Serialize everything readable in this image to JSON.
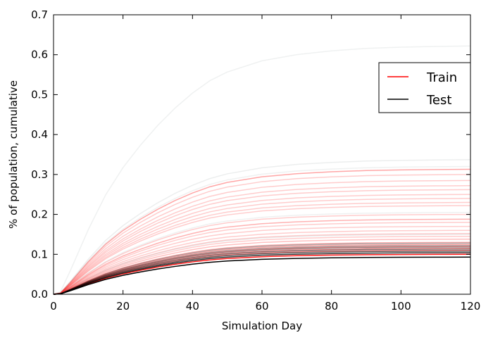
{
  "chart_data": {
    "type": "line",
    "title": "",
    "xlabel": "Simulation Day",
    "ylabel": "% of population, cumulative",
    "xlim": [
      0,
      120
    ],
    "ylim": [
      0,
      0.7
    ],
    "xticks": [
      0,
      20,
      40,
      60,
      80,
      100,
      120
    ],
    "yticks": [
      0.0,
      0.1,
      0.2,
      0.3,
      0.4,
      0.5,
      0.6,
      0.7
    ],
    "xtick_labels": [
      "0",
      "20",
      "40",
      "60",
      "80",
      "100",
      "120"
    ],
    "ytick_labels": [
      "0.0",
      "0.1",
      "0.2",
      "0.3",
      "0.4",
      "0.5",
      "0.6",
      "0.7"
    ],
    "grid": false,
    "legend": {
      "placement": "upper-right",
      "entries": [
        {
          "label": "Train",
          "color": "#ff0000"
        },
        {
          "label": "Test",
          "color": "#000000"
        }
      ]
    },
    "curve_shape": {
      "x": [
        0,
        2,
        5,
        10,
        15,
        20,
        25,
        30,
        35,
        40,
        45,
        50,
        60,
        70,
        80,
        90,
        100,
        110,
        120
      ],
      "unit_profile": [
        0,
        0.01,
        0.1,
        0.26,
        0.4,
        0.51,
        0.6,
        0.68,
        0.75,
        0.81,
        0.86,
        0.895,
        0.94,
        0.965,
        0.98,
        0.99,
        0.995,
        0.998,
        1.0
      ]
    },
    "series": [
      {
        "group": "Train",
        "final": 0.313,
        "opacity": 0.35
      },
      {
        "group": "Train",
        "final": 0.3,
        "opacity": 0.2
      },
      {
        "group": "Train",
        "final": 0.285,
        "opacity": 0.2
      },
      {
        "group": "Train",
        "final": 0.272,
        "opacity": 0.2
      },
      {
        "group": "Train",
        "final": 0.262,
        "opacity": 0.2
      },
      {
        "group": "Train",
        "final": 0.25,
        "opacity": 0.2
      },
      {
        "group": "Train",
        "final": 0.24,
        "opacity": 0.2
      },
      {
        "group": "Train",
        "final": 0.23,
        "opacity": 0.2
      },
      {
        "group": "Train",
        "final": 0.222,
        "opacity": 0.2
      },
      {
        "group": "Train",
        "final": 0.2,
        "opacity": 0.2
      },
      {
        "group": "Train",
        "final": 0.188,
        "opacity": 0.3
      },
      {
        "group": "Train",
        "final": 0.18,
        "opacity": 0.2
      },
      {
        "group": "Train",
        "final": 0.17,
        "opacity": 0.2
      },
      {
        "group": "Train",
        "final": 0.16,
        "opacity": 0.2
      },
      {
        "group": "Train",
        "final": 0.152,
        "opacity": 0.2
      },
      {
        "group": "Train",
        "final": 0.145,
        "opacity": 0.2
      },
      {
        "group": "Train",
        "final": 0.138,
        "opacity": 0.25
      },
      {
        "group": "Train",
        "final": 0.13,
        "opacity": 0.3
      },
      {
        "group": "Train",
        "final": 0.125,
        "opacity": 0.35
      },
      {
        "group": "Train",
        "final": 0.12,
        "opacity": 0.4
      },
      {
        "group": "Train",
        "final": 0.115,
        "opacity": 0.4
      },
      {
        "group": "Train",
        "final": 0.11,
        "opacity": 0.45
      },
      {
        "group": "Train",
        "final": 0.1,
        "opacity": 0.9
      },
      {
        "group": "Test",
        "final": 0.622,
        "opacity": 0.12
      },
      {
        "group": "Test",
        "final": 0.337,
        "opacity": 0.15
      },
      {
        "group": "Test",
        "final": 0.32,
        "opacity": 0.12
      },
      {
        "group": "Test",
        "final": 0.205,
        "opacity": 0.12
      },
      {
        "group": "Test",
        "final": 0.15,
        "opacity": 0.15
      },
      {
        "group": "Test",
        "final": 0.128,
        "opacity": 0.3
      },
      {
        "group": "Test",
        "final": 0.122,
        "opacity": 0.35
      },
      {
        "group": "Test",
        "final": 0.118,
        "opacity": 0.4
      },
      {
        "group": "Test",
        "final": 0.113,
        "opacity": 0.5
      },
      {
        "group": "Test",
        "final": 0.108,
        "opacity": 0.6
      },
      {
        "group": "Test",
        "final": 0.104,
        "opacity": 0.8
      },
      {
        "group": "Test",
        "final": 0.093,
        "opacity": 1.0
      }
    ]
  }
}
